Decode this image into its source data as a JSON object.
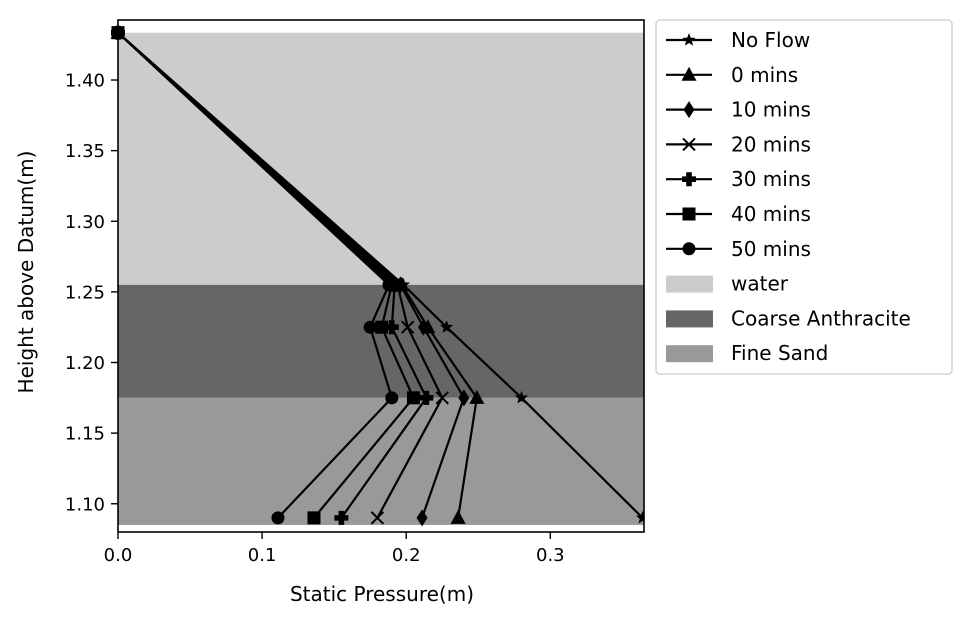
{
  "chart_data": {
    "type": "line",
    "xlabel": "Static Pressure(m)",
    "ylabel": "Height above Datum(m)",
    "xlim": [
      0.0,
      0.365
    ],
    "ylim": [
      1.08,
      1.4425
    ],
    "x_ticks": [
      0.0,
      0.1,
      0.2,
      0.3
    ],
    "x_tick_labels": [
      "0.0",
      "0.1",
      "0.2",
      "0.3"
    ],
    "y_ticks": [
      1.1,
      1.15,
      1.2,
      1.25,
      1.3,
      1.35,
      1.4
    ],
    "y_tick_labels": [
      "1.10",
      "1.15",
      "1.20",
      "1.25",
      "1.30",
      "1.35",
      "1.40"
    ],
    "grid": false,
    "legend_position": "outside right",
    "bands": [
      {
        "name": "water",
        "y_from": 1.255,
        "y_to": 1.4335,
        "color": "#cccccc"
      },
      {
        "name": "Coarse Anthracite",
        "y_from": 1.175,
        "y_to": 1.255,
        "color": "#666666"
      },
      {
        "name": "Fine Sand",
        "y_from": 1.085,
        "y_to": 1.175,
        "color": "#999999"
      }
    ],
    "series": [
      {
        "name": "No Flow",
        "marker": "star",
        "x": [
          0.0,
          0.198,
          0.228,
          0.28,
          0.364
        ],
        "y": [
          1.4335,
          1.255,
          1.225,
          1.175,
          1.09
        ]
      },
      {
        "name": "0 mins",
        "marker": "triangle",
        "x": [
          0.0,
          0.197,
          0.215,
          0.249,
          0.236
        ],
        "y": [
          1.4335,
          1.255,
          1.225,
          1.175,
          1.09
        ]
      },
      {
        "name": "10 mins",
        "marker": "diamond",
        "x": [
          0.0,
          0.196,
          0.212,
          0.24,
          0.211
        ],
        "y": [
          1.4335,
          1.255,
          1.225,
          1.175,
          1.09
        ]
      },
      {
        "name": "20 mins",
        "marker": "x",
        "x": [
          0.0,
          0.194,
          0.201,
          0.225,
          0.18
        ],
        "y": [
          1.4335,
          1.255,
          1.225,
          1.175,
          1.09
        ]
      },
      {
        "name": "30 mins",
        "marker": "plus",
        "x": [
          0.0,
          0.192,
          0.19,
          0.214,
          0.155
        ],
        "y": [
          1.4335,
          1.255,
          1.225,
          1.175,
          1.09
        ]
      },
      {
        "name": "40 mins",
        "marker": "square",
        "x": [
          0.0,
          0.19,
          0.183,
          0.205,
          0.136
        ],
        "y": [
          1.4335,
          1.255,
          1.225,
          1.175,
          1.09
        ]
      },
      {
        "name": "50 mins",
        "marker": "circle",
        "x": [
          0.0,
          0.188,
          0.175,
          0.19,
          0.111
        ],
        "y": [
          1.4335,
          1.255,
          1.225,
          1.175,
          1.09
        ]
      }
    ]
  }
}
